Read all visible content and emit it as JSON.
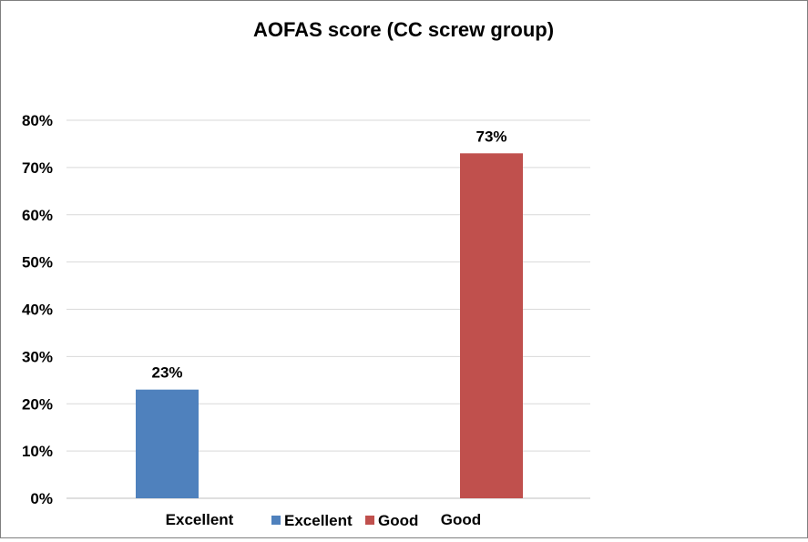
{
  "chart_data": {
    "type": "bar",
    "title": "AOFAS score (CC screw group)",
    "xlabel": "",
    "ylabel": "",
    "categories": [
      "Excellent",
      "Good"
    ],
    "values": [
      23,
      73
    ],
    "value_labels": [
      "23%",
      "73%"
    ],
    "colors": [
      "#4f81bd",
      "#c0504d"
    ],
    "ylim": [
      0,
      80
    ],
    "yticks": [
      0,
      10,
      20,
      30,
      40,
      50,
      60,
      70,
      80
    ],
    "ytick_labels": [
      "0%",
      "10%",
      "20%",
      "30%",
      "40%",
      "50%",
      "60%",
      "70%",
      "80%"
    ],
    "grid": true,
    "legend": {
      "position": "bottom",
      "entries": [
        {
          "label": "Excellent",
          "color": "#4f81bd"
        },
        {
          "label": "Good",
          "color": "#c0504d"
        }
      ]
    }
  }
}
